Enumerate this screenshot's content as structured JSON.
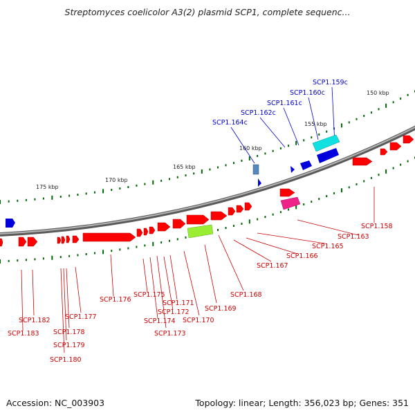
{
  "title": "Streptomyces coelicolor A3(2) plasmid SCP1, complete sequenc...",
  "footer": {
    "accession": "Accession: NC_003903",
    "summary": "Topology: linear; Length: 356,023 bp; Genes: 351"
  },
  "colors": {
    "backbone": "#8c8c8c",
    "forward_gene": "#ff0000",
    "reverse_gene": "#0000ee",
    "label_forward": "#cc0000",
    "label_reverse": "#0000cc",
    "tick": "#006600",
    "highlight_cyan": "#00e5e5",
    "highlight_magenta": "#ee2288",
    "highlight_green": "#99ee33",
    "highlight_steel": "#5588bb"
  },
  "scale_labels": [
    "150 kbp",
    "155 kbp",
    "160 kbp",
    "165 kbp",
    "170 kbp",
    "175 kbp"
  ],
  "reverse_labels": [
    "SCP1.159c",
    "SCP1.160c",
    "SCP1.161c",
    "SCP1.162c",
    "SCP1.164c"
  ],
  "forward_labels": [
    "SCP1.158",
    "SCP1.163",
    "SCP1.165",
    "SCP1.166",
    "SCP1.167",
    "SCP1.168",
    "SCP1.169",
    "SCP1.170",
    "SCP1.171",
    "SCP1.172",
    "SCP1.173",
    "SCP1.174",
    "SCP1.175",
    "SCP1.176",
    "SCP1.177",
    "SCP1.178",
    "SCP1.179",
    "SCP1.180",
    "SCP1.182",
    "SCP1.183"
  ]
}
